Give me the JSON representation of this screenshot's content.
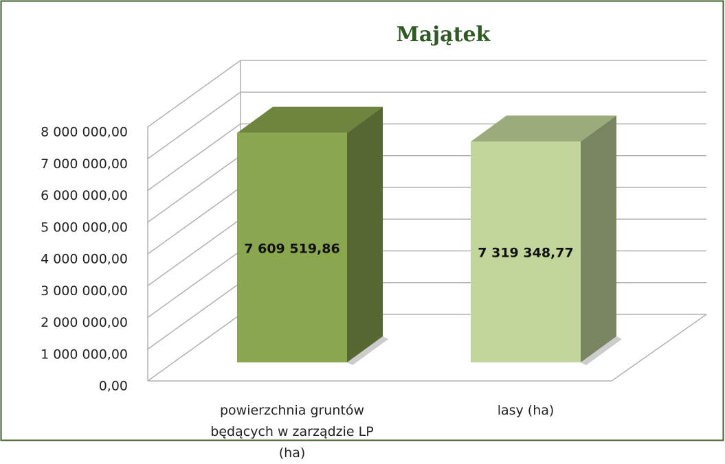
{
  "chart_data": {
    "type": "bar3d",
    "title": "Majątek",
    "categories": [
      "powierzchnia gruntów będących w zarządzie LP (ha)",
      "lasy (ha)"
    ],
    "values": [
      7609519.86,
      7319348.77
    ],
    "value_labels": [
      "7 609 519,86",
      "7 319 348,77"
    ],
    "colors": [
      "#8aa64f",
      "#c2d69b"
    ],
    "ylim": [
      0,
      8000000
    ],
    "yticks": [
      {
        "value": 0,
        "label": "0,00"
      },
      {
        "value": 1000000,
        "label": "1 000 000,00"
      },
      {
        "value": 2000000,
        "label": "2 000 000,00"
      },
      {
        "value": 3000000,
        "label": "3 000 000,00"
      },
      {
        "value": 4000000,
        "label": "4 000 000,00"
      },
      {
        "value": 5000000,
        "label": "5 000 000,00"
      },
      {
        "value": 6000000,
        "label": "6 000 000,00"
      },
      {
        "value": 7000000,
        "label": "7 000 000,00"
      },
      {
        "value": 8000000,
        "label": "8 000 000,00"
      }
    ],
    "grid": true
  }
}
